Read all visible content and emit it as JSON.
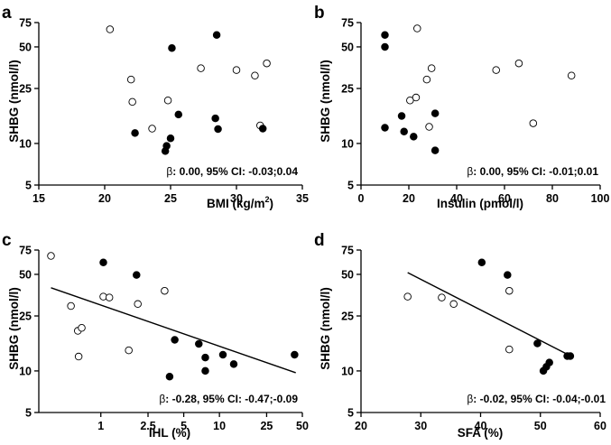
{
  "chart_data": [
    {
      "letter": "a",
      "type": "scatter",
      "xscale": "linear",
      "xlim": [
        15,
        35
      ],
      "ylim": [
        5,
        75
      ],
      "xticks": [
        15,
        20,
        25,
        30,
        35
      ],
      "xtick_labels": [
        "15",
        "20",
        "25",
        "30",
        "35"
      ],
      "yticks": [
        5,
        10,
        25,
        50,
        75
      ],
      "ytick_labels": [
        "5",
        "10",
        "25",
        "50",
        "75"
      ],
      "xlabel": "BMI (kg/m",
      "xlabel_sup": "2",
      "xlabel_end": ")",
      "ylabel": "SHBG (nmol/l)",
      "beta": "β",
      "annotation": ": 0.00, 95% CI: -0.03;0.04",
      "series": [
        {
          "name": "open",
          "fill": "#ffffff",
          "points": [
            [
              20.4,
              67
            ],
            [
              22.0,
              29
            ],
            [
              22.1,
              20
            ],
            [
              24.8,
              20.5
            ],
            [
              23.6,
              12.8
            ],
            [
              27.3,
              35
            ],
            [
              30.0,
              34
            ],
            [
              31.4,
              31
            ],
            [
              32.3,
              38
            ],
            [
              31.8,
              13.5
            ]
          ]
        },
        {
          "name": "filled",
          "fill": "#000000",
          "points": [
            [
              25.1,
              49
            ],
            [
              28.5,
              61
            ],
            [
              25.6,
              16.2
            ],
            [
              28.4,
              15.2
            ],
            [
              28.6,
              12.7
            ],
            [
              22.3,
              11.9
            ],
            [
              25.0,
              10.9
            ],
            [
              24.7,
              9.6
            ],
            [
              24.6,
              8.8
            ],
            [
              32.0,
              12.8
            ]
          ]
        }
      ]
    },
    {
      "letter": "b",
      "type": "scatter",
      "xscale": "linear",
      "xlim": [
        0,
        100
      ],
      "ylim": [
        5,
        75
      ],
      "xticks": [
        0,
        20,
        40,
        60,
        80,
        100
      ],
      "xtick_labels": [
        "0",
        "20",
        "40",
        "60",
        "80",
        "100"
      ],
      "yticks": [
        5,
        10,
        25,
        50,
        75
      ],
      "ytick_labels": [
        "5",
        "10",
        "25",
        "50",
        "75"
      ],
      "xlabel": "Insulin (pmol/l)",
      "ylabel": "SHBG (nmol/l)",
      "beta": "β",
      "annotation": ": 0.00, 95% CI: -0.01;0.01",
      "series": [
        {
          "name": "open",
          "fill": "#ffffff",
          "points": [
            [
              23.5,
              68
            ],
            [
              29.5,
              35
            ],
            [
              27.5,
              29
            ],
            [
              23.0,
              21.5
            ],
            [
              20.5,
              20.5
            ],
            [
              56.5,
              34
            ],
            [
              66.0,
              38
            ],
            [
              88.0,
              31
            ],
            [
              72.0,
              14
            ],
            [
              28.5,
              13.2
            ]
          ]
        },
        {
          "name": "filled",
          "fill": "#000000",
          "points": [
            [
              10.0,
              61
            ],
            [
              10.0,
              50
            ],
            [
              31.0,
              16.5
            ],
            [
              17.0,
              15.8
            ],
            [
              10.0,
              13.0
            ],
            [
              18.0,
              12.2
            ],
            [
              22.0,
              11.2
            ],
            [
              31.0,
              8.9
            ]
          ]
        }
      ]
    },
    {
      "letter": "c",
      "type": "scatter",
      "xscale": "log",
      "xlim": [
        0.3,
        50
      ],
      "ylim": [
        5,
        75
      ],
      "xticks": [
        1,
        2.5,
        5,
        10,
        25,
        50
      ],
      "xtick_labels": [
        "1",
        "2.5",
        "5",
        "10",
        "25",
        "50"
      ],
      "yticks": [
        5,
        10,
        25,
        50,
        75
      ],
      "ytick_labels": [
        "5",
        "10",
        "25",
        "50",
        "75"
      ],
      "xlabel": "IHL (%)",
      "ylabel": "SHBG (nmol/l)",
      "fit_x": [
        0.38,
        44
      ],
      "fit_y": [
        40,
        9.7
      ],
      "beta": "β",
      "annotation": ": -0.28, 95% CI: -0.47;-0.09",
      "series": [
        {
          "name": "open",
          "fill": "#ffffff",
          "points": [
            [
              0.38,
              68
            ],
            [
              0.56,
              29.5
            ],
            [
              0.64,
              19.5
            ],
            [
              0.69,
              20.5
            ],
            [
              0.65,
              12.7
            ],
            [
              1.05,
              34.5
            ],
            [
              1.18,
              34
            ],
            [
              1.72,
              14.1
            ],
            [
              2.05,
              30.5
            ],
            [
              3.45,
              38
            ]
          ]
        },
        {
          "name": "filled",
          "fill": "#000000",
          "points": [
            [
              1.05,
              61
            ],
            [
              2.0,
              49.5
            ],
            [
              4.2,
              16.8
            ],
            [
              6.7,
              15.7
            ],
            [
              7.6,
              12.5
            ],
            [
              7.6,
              10.0
            ],
            [
              3.8,
              9.1
            ],
            [
              10.7,
              13.1
            ],
            [
              13.2,
              11.2
            ],
            [
              43.0,
              13.1
            ]
          ]
        }
      ]
    },
    {
      "letter": "d",
      "type": "scatter",
      "xscale": "linear",
      "xlim": [
        20,
        60
      ],
      "ylim": [
        5,
        75
      ],
      "xticks": [
        20,
        30,
        40,
        50,
        60
      ],
      "xtick_labels": [
        "20",
        "30",
        "40",
        "50",
        "60"
      ],
      "yticks": [
        5,
        10,
        25,
        50,
        75
      ],
      "ytick_labels": [
        "5",
        "10",
        "25",
        "50",
        "75"
      ],
      "xlabel": "SFA (%)",
      "ylabel": "SHBG (nmol/l)",
      "fit_x": [
        27.8,
        54.8
      ],
      "fit_y": [
        51.5,
        13.0
      ],
      "beta": "β",
      "annotation": ": -0.02, 95% CI: -0.04;-0.01",
      "series": [
        {
          "name": "open",
          "fill": "#ffffff",
          "points": [
            [
              27.8,
              34.5
            ],
            [
              33.5,
              34
            ],
            [
              35.5,
              30.5
            ],
            [
              44.8,
              38
            ],
            [
              44.8,
              14.3
            ]
          ]
        },
        {
          "name": "filled",
          "fill": "#000000",
          "points": [
            [
              40.2,
              61
            ],
            [
              44.5,
              49.5
            ],
            [
              49.5,
              15.8
            ],
            [
              50.5,
              10.0
            ],
            [
              51.0,
              10.7
            ],
            [
              51.5,
              11.5
            ],
            [
              54.5,
              12.8
            ],
            [
              55.0,
              12.8
            ]
          ]
        }
      ]
    }
  ]
}
